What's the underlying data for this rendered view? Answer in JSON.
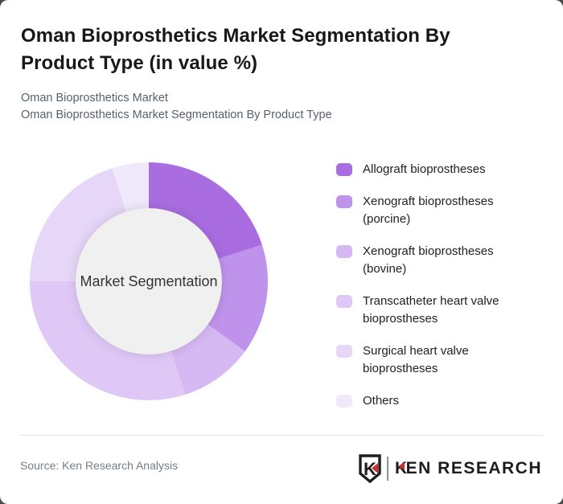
{
  "page": {
    "background_color": "#4a4a4a",
    "card_color": "#ffffff",
    "title_lines": [
      "Oman Bioprosthetics Market Segmentation By",
      "Product Type (in value %)"
    ],
    "subtitle_lines": [
      "Oman Bioprosthetics Market",
      "Oman Bioprosthetics Market Segmentation By Product Type"
    ],
    "footer": {
      "source": "Source: Ken Research Analysis"
    },
    "logo": {
      "badge_letter": "K",
      "wordmark_prefix": "K",
      "wordmark_suffix": "EN RESEARCH",
      "accent_color": "#c9302c"
    }
  },
  "chart_data": {
    "type": "pie",
    "subtype": "donut",
    "title": "Oman Bioprosthetics Market Segmentation By Product Type (in value %)",
    "center_label": "Market Segmentation",
    "unit": "% of value",
    "start_angle_deg": 0,
    "direction": "clockwise",
    "legend_position": "right",
    "categories": [
      "Allograft bioprostheses",
      "Xenograft bioprostheses (porcine)",
      "Xenograft bioprostheses (bovine)",
      "Transcatheter heart valve bioprostheses",
      "Surgical heart valve bioprostheses",
      "Others"
    ],
    "values": [
      20,
      15,
      10,
      30,
      20,
      5
    ],
    "colors": [
      "#a96de1",
      "#bf93ec",
      "#d6b8f3",
      "#dfc8f6",
      "#e6d6f8",
      "#f0e9fb"
    ],
    "hole_color": "#f0f0f0",
    "hole_label_color": "#333333"
  }
}
